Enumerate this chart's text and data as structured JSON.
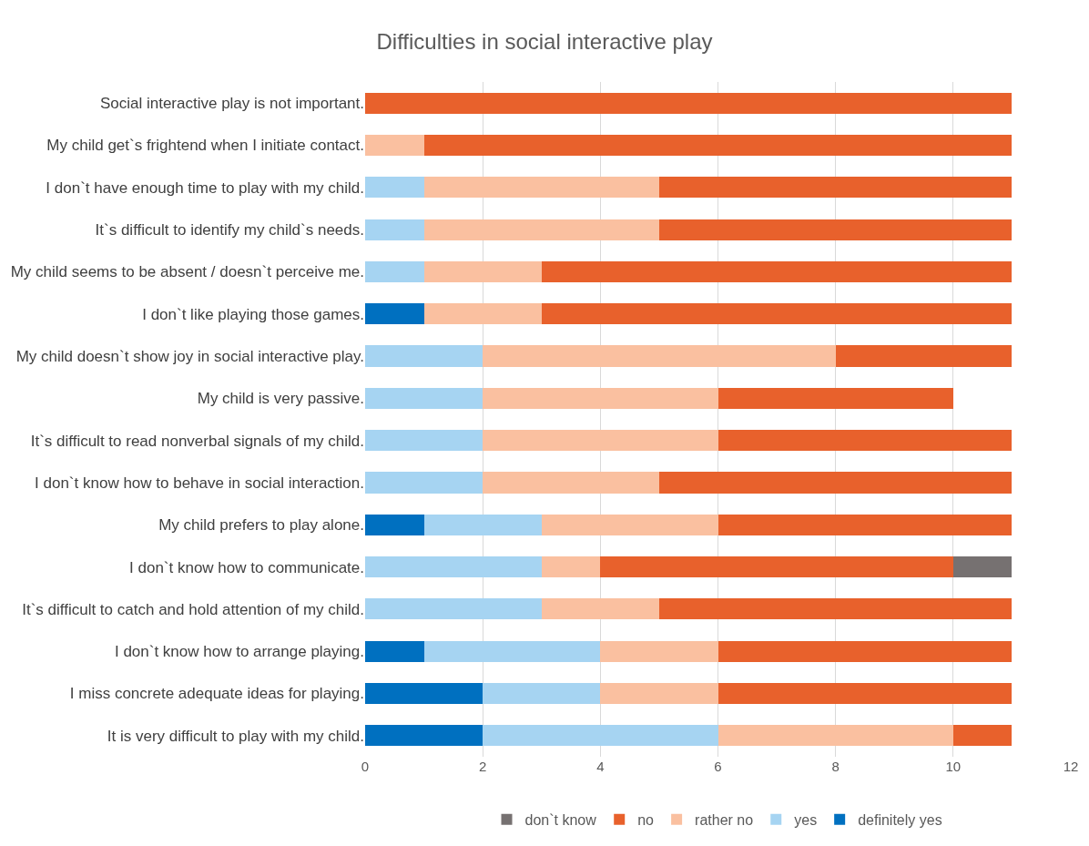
{
  "chart_data": {
    "type": "bar",
    "orientation": "horizontal",
    "stacked": true,
    "title": "Difficulties in social interactive play",
    "categories": [
      "Social interactive play is not important.",
      "My child get`s frightend when I initiate contact.",
      "I don`t have enough time to play with my child.",
      "It`s difficult to identify my child`s needs.",
      "My child seems to be absent / doesn`t perceive me.",
      "I don`t like playing those games.",
      "My child doesn`t show joy in social interactive play.",
      "My child is very passive.",
      "It`s difficult to read nonverbal signals of my child.",
      "I don`t know how to behave in social interaction.",
      "My child prefers to play alone.",
      "I don`t know how to communicate.",
      "It`s difficult to catch and hold attention of my child.",
      "I don`t know how to arrange playing.",
      "I miss concrete adequate ideas for playing.",
      "It is very difficult to play with my child."
    ],
    "series": [
      {
        "name": "definitely yes",
        "color": "#0070c0",
        "values": [
          0,
          0,
          0,
          0,
          0,
          1,
          0,
          0,
          0,
          0,
          1,
          0,
          0,
          1,
          2,
          2
        ]
      },
      {
        "name": "yes",
        "color": "#a6d4f2",
        "values": [
          0,
          0,
          1,
          1,
          1,
          0,
          2,
          2,
          2,
          2,
          2,
          3,
          3,
          3,
          2,
          4
        ]
      },
      {
        "name": "rather no",
        "color": "#fac0a0",
        "values": [
          0,
          1,
          4,
          4,
          2,
          2,
          6,
          4,
          4,
          3,
          3,
          1,
          2,
          2,
          2,
          4
        ]
      },
      {
        "name": "no",
        "color": "#e8612c",
        "values": [
          11,
          10,
          6,
          6,
          8,
          8,
          3,
          4,
          5,
          6,
          5,
          6,
          6,
          5,
          5,
          1
        ]
      },
      {
        "name": "don`t know",
        "color": "#767171",
        "values": [
          0,
          0,
          0,
          0,
          0,
          0,
          0,
          0,
          0,
          0,
          0,
          1,
          0,
          0,
          0,
          0
        ]
      }
    ],
    "xlim": [
      0,
      12
    ],
    "xticks": [
      0,
      2,
      4,
      6,
      8,
      10,
      12
    ],
    "grid": "x",
    "legend": "bottom"
  }
}
